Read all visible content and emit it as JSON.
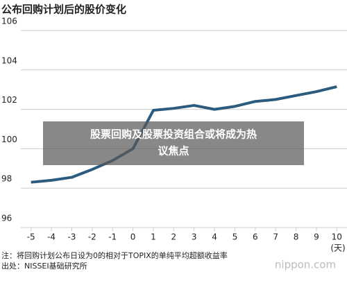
{
  "chart_data": {
    "type": "line",
    "title": "公布回购计划后的股价变化",
    "x": [
      -5,
      -4,
      -3,
      -2,
      -1,
      0,
      1,
      2,
      3,
      4,
      5,
      6,
      7,
      8,
      9,
      10
    ],
    "series": [
      {
        "color": "#2b5b7e",
        "values": [
          98.3,
          98.4,
          98.55,
          98.95,
          99.4,
          100.0,
          101.95,
          102.05,
          102.2,
          102.0,
          102.15,
          102.4,
          102.5,
          102.7,
          102.9,
          103.15
        ]
      }
    ],
    "xlim": [
      -5.5,
      10.5
    ],
    "xticks": [
      -5,
      -4,
      -3,
      -2,
      -1,
      0,
      1,
      2,
      3,
      4,
      5,
      6,
      7,
      8,
      9,
      10
    ],
    "ylim": [
      96,
      106
    ],
    "yticks": [
      96,
      98,
      100,
      102,
      104,
      106
    ],
    "x_unit": "(天)",
    "grid": true,
    "notes": [
      "注：将回购计划公布日设为0的相对于TOPIX的单纯平均超额收益率",
      "出处：NISSEI基础研究所"
    ],
    "overlay": [
      "股票回购及股票投资组合或将成为热",
      "议焦点"
    ],
    "watermark": "nippon.com"
  }
}
